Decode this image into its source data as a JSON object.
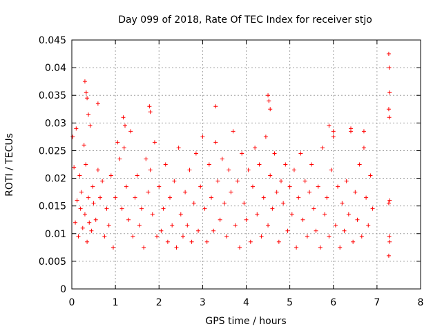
{
  "chart_data": {
    "type": "scatter",
    "title": "Day 099 of 2018, Rate Of TEC Index for receiver stjo",
    "xlabel": "GPS time / hours",
    "ylabel": "ROTI / TECUs",
    "xlim": [
      0,
      8
    ],
    "ylim": [
      0,
      0.045
    ],
    "xticks": [
      0,
      1,
      2,
      3,
      4,
      5,
      6,
      7,
      8
    ],
    "yticks": [
      0,
      0.005,
      0.01,
      0.015,
      0.02,
      0.025,
      0.03,
      0.035,
      0.04,
      0.045
    ],
    "xtick_labels": [
      "0",
      "1",
      "2",
      "3",
      "4",
      "5",
      "6",
      "7",
      "8"
    ],
    "ytick_labels": [
      "0",
      "0.005",
      "0.01",
      "0.015",
      "0.02",
      "0.025",
      "0.03",
      "0.035",
      "0.04",
      "0.045"
    ],
    "grid": true,
    "marker": "+",
    "series": [
      {
        "name": "ROTI",
        "color": "#ff0000",
        "x": [
          0.02,
          0.05,
          0.08,
          0.1,
          0.12,
          0.15,
          0.18,
          0.2,
          0.22,
          0.25,
          0.28,
          0.3,
          0.32,
          0.35,
          0.38,
          0.4,
          0.42,
          0.45,
          0.48,
          0.5,
          0.55,
          0.6,
          0.65,
          0.7,
          0.75,
          0.8,
          0.85,
          0.9,
          0.95,
          1.0,
          1.05,
          1.1,
          1.15,
          1.2,
          1.25,
          1.3,
          1.35,
          1.4,
          1.45,
          1.5,
          1.55,
          1.6,
          1.65,
          1.7,
          1.75,
          1.8,
          1.85,
          1.9,
          1.95,
          2.0,
          2.05,
          2.1,
          2.15,
          2.2,
          2.25,
          2.3,
          2.35,
          2.4,
          2.45,
          2.5,
          2.55,
          2.6,
          2.65,
          2.7,
          2.75,
          2.8,
          2.85,
          2.9,
          2.95,
          3.0,
          3.05,
          3.1,
          3.15,
          3.2,
          3.25,
          3.3,
          3.35,
          3.4,
          3.45,
          3.5,
          3.55,
          3.6,
          3.65,
          3.7,
          3.75,
          3.8,
          3.85,
          3.9,
          3.95,
          4.0,
          4.05,
          4.1,
          4.15,
          4.2,
          4.25,
          4.3,
          4.35,
          4.4,
          4.45,
          4.5,
          4.55,
          4.6,
          4.65,
          4.7,
          4.75,
          4.8,
          4.85,
          4.9,
          4.95,
          5.0,
          5.05,
          5.1,
          5.15,
          5.2,
          5.25,
          5.3,
          5.35,
          5.4,
          5.45,
          5.5,
          5.55,
          5.6,
          5.65,
          5.7,
          5.75,
          5.8,
          5.85,
          5.9,
          5.95,
          6.0,
          6.05,
          6.1,
          6.15,
          6.2,
          6.25,
          6.3,
          6.35,
          6.4,
          6.45,
          6.5,
          6.55,
          6.6,
          6.65,
          6.7,
          6.75,
          6.8,
          6.85,
          6.9,
          7.27,
          7.28,
          7.29,
          7.27,
          7.28,
          7.29,
          7.27,
          7.28,
          7.29,
          7.27,
          0.3,
          0.33,
          0.35,
          0.38,
          0.6,
          1.18,
          1.22,
          1.78,
          1.8,
          3.3,
          4.5,
          4.52,
          4.55,
          5.9,
          6.0,
          6.4,
          6.7
        ],
        "y": [
          0.0275,
          0.022,
          0.012,
          0.029,
          0.016,
          0.0095,
          0.0205,
          0.0145,
          0.0175,
          0.011,
          0.026,
          0.0135,
          0.0225,
          0.0085,
          0.0165,
          0.012,
          0.0295,
          0.0105,
          0.0185,
          0.0155,
          0.0125,
          0.0215,
          0.0165,
          0.0195,
          0.0095,
          0.0145,
          0.0115,
          0.0205,
          0.0075,
          0.0165,
          0.0265,
          0.0235,
          0.0145,
          0.0255,
          0.0185,
          0.0125,
          0.0285,
          0.0095,
          0.0165,
          0.0205,
          0.0115,
          0.0145,
          0.0075,
          0.0235,
          0.0175,
          0.0215,
          0.0135,
          0.0265,
          0.0095,
          0.0185,
          0.0105,
          0.0145,
          0.0225,
          0.0085,
          0.0165,
          0.0115,
          0.0195,
          0.0075,
          0.0255,
          0.0135,
          0.0095,
          0.0175,
          0.0115,
          0.0215,
          0.0085,
          0.0155,
          0.0245,
          0.0105,
          0.0185,
          0.0275,
          0.0145,
          0.0085,
          0.0225,
          0.0165,
          0.0105,
          0.0265,
          0.0195,
          0.0125,
          0.0235,
          0.0155,
          0.0095,
          0.0215,
          0.0175,
          0.0285,
          0.0115,
          0.0195,
          0.0075,
          0.0245,
          0.0155,
          0.0125,
          0.0215,
          0.0085,
          0.0185,
          0.0255,
          0.0135,
          0.0225,
          0.0095,
          0.0165,
          0.0275,
          0.0115,
          0.0205,
          0.0145,
          0.0245,
          0.0175,
          0.0085,
          0.0195,
          0.0155,
          0.0225,
          0.0105,
          0.0185,
          0.0135,
          0.0215,
          0.0075,
          0.0165,
          0.0245,
          0.0125,
          0.0195,
          0.0095,
          0.0175,
          0.0225,
          0.0145,
          0.0105,
          0.0185,
          0.0075,
          0.0255,
          0.0135,
          0.0165,
          0.0095,
          0.0215,
          0.0275,
          0.0115,
          0.0185,
          0.0075,
          0.0155,
          0.0105,
          0.0195,
          0.0135,
          0.0285,
          0.0085,
          0.0175,
          0.0125,
          0.0225,
          0.0095,
          0.0255,
          0.0165,
          0.0115,
          0.0205,
          0.0145,
          0.0425,
          0.04,
          0.0355,
          0.0325,
          0.031,
          0.016,
          0.0155,
          0.0095,
          0.0085,
          0.006,
          0.0375,
          0.0355,
          0.0345,
          0.0315,
          0.0335,
          0.031,
          0.0295,
          0.033,
          0.032,
          0.033,
          0.035,
          0.034,
          0.0325,
          0.0295,
          0.0285,
          0.029,
          0.0285
        ]
      }
    ]
  }
}
